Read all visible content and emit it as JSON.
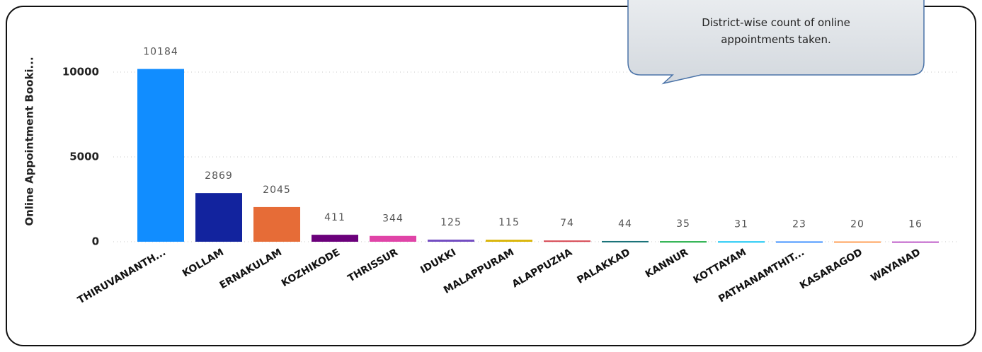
{
  "chart_data": {
    "type": "bar",
    "y_label": "Online Appointment Booki...",
    "annotation": "District-wise count of online appointments taken.",
    "categories": [
      "THIRUVANANTH...",
      "KOLLAM",
      "ERNAKULAM",
      "KOZHIKODE",
      "THRISSUR",
      "IDUKKI",
      "MALAPPURAM",
      "ALAPPUZHA",
      "PALAKKAD",
      "KANNUR",
      "KOTTAYAM",
      "PATHANAMTHIT...",
      "KASARAGOD",
      "WAYANAD"
    ],
    "values": [
      10184,
      2869,
      2045,
      411,
      344,
      125,
      115,
      74,
      44,
      35,
      31,
      23,
      20,
      16
    ],
    "colors": [
      "#118dff",
      "#12239e",
      "#e66c37",
      "#6b007b",
      "#e044a7",
      "#744ec2",
      "#d9b300",
      "#d64550",
      "#197278",
      "#1aab40",
      "#15c6f4",
      "#4092ff",
      "#ffa058",
      "#be5dc9"
    ],
    "ylim": [
      0,
      11000
    ],
    "yticks": [
      0,
      5000,
      10000
    ],
    "grid": true
  }
}
